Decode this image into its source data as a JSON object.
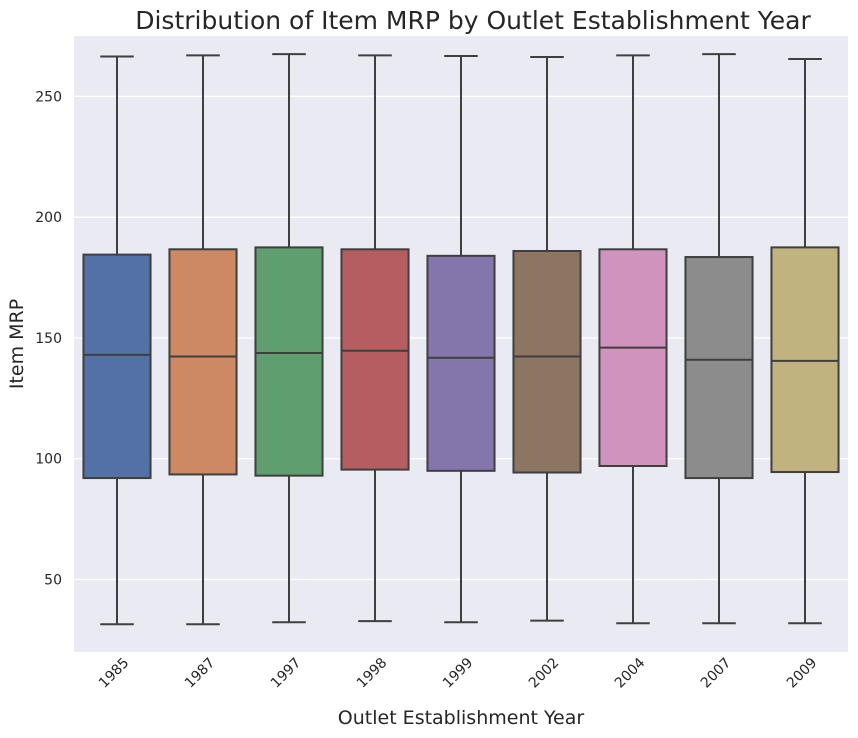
{
  "chart_data": {
    "type": "boxplot",
    "title": "Distribution of Item MRP by Outlet Establishment Year",
    "xlabel": "Outlet Establishment Year",
    "ylabel": "Item MRP",
    "ylim": [
      20,
      275
    ],
    "yticks": [
      50,
      100,
      150,
      200,
      250
    ],
    "grid": true,
    "categories": [
      "1985",
      "1987",
      "1997",
      "1998",
      "1999",
      "2002",
      "2004",
      "2007",
      "2009"
    ],
    "boxes": [
      {
        "category": "1985",
        "min": 31.5,
        "q1": 92.0,
        "median": 143.0,
        "q3": 184.5,
        "max": 266.5,
        "color": "#5471a5"
      },
      {
        "category": "1987",
        "min": 31.5,
        "q1": 93.5,
        "median": 142.3,
        "q3": 186.7,
        "max": 267.0,
        "color": "#cc8963"
      },
      {
        "category": "1997",
        "min": 32.3,
        "q1": 93.0,
        "median": 143.8,
        "q3": 187.5,
        "max": 267.5,
        "color": "#5f9e6e"
      },
      {
        "category": "1998",
        "min": 32.8,
        "q1": 95.5,
        "median": 144.7,
        "q3": 186.7,
        "max": 267.0,
        "color": "#b55d60"
      },
      {
        "category": "1999",
        "min": 32.3,
        "q1": 95.0,
        "median": 141.8,
        "q3": 184.0,
        "max": 266.7,
        "color": "#8475ab"
      },
      {
        "category": "2002",
        "min": 33.0,
        "q1": 94.3,
        "median": 142.3,
        "q3": 186.0,
        "max": 266.3,
        "color": "#8c7561"
      },
      {
        "category": "2004",
        "min": 31.9,
        "q1": 97.0,
        "median": 146.0,
        "q3": 186.7,
        "max": 267.0,
        "color": "#d093be"
      },
      {
        "category": "2007",
        "min": 31.9,
        "q1": 92.0,
        "median": 141.0,
        "q3": 183.5,
        "max": 267.5,
        "color": "#8c8c8c"
      },
      {
        "category": "2009",
        "min": 31.9,
        "q1": 94.5,
        "median": 140.5,
        "q3": 187.5,
        "max": 265.5,
        "color": "#c1b37f"
      }
    ]
  }
}
